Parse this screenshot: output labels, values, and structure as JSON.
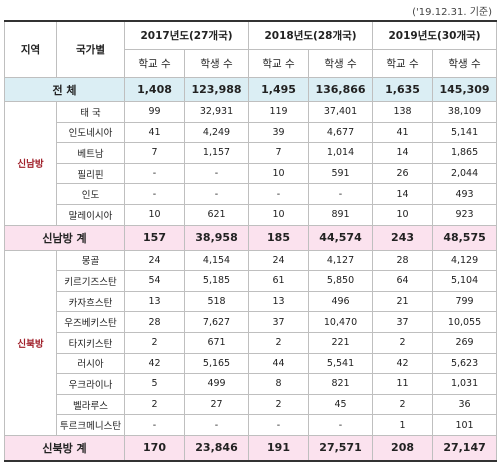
{
  "note": "('19.12.31. 기준)",
  "header": {
    "region": "지역",
    "country": "국가별",
    "years": [
      "2017년도(27개국)",
      "2018년도(28개국)",
      "2019년도(30개국)"
    ],
    "subheaders": [
      "학교 수",
      "학생 수",
      "학교 수",
      "학생 수",
      "학교 수",
      "학생 수"
    ]
  },
  "total": {
    "label": "전 체",
    "values": [
      "1,408",
      "123,988",
      "1,495",
      "136,866",
      "1,635",
      "145,309"
    ]
  },
  "groups": [
    {
      "region": "신남방",
      "rows": [
        {
          "country": "태 국",
          "values": [
            "99",
            "32,931",
            "119",
            "37,401",
            "138",
            "38,109"
          ]
        },
        {
          "country": "인도네시아",
          "values": [
            "41",
            "4,249",
            "39",
            "4,677",
            "41",
            "5,141"
          ]
        },
        {
          "country": "베트남",
          "values": [
            "7",
            "1,157",
            "7",
            "1,014",
            "14",
            "1,865"
          ]
        },
        {
          "country": "필리핀",
          "values": [
            "-",
            "-",
            "10",
            "591",
            "26",
            "2,044"
          ]
        },
        {
          "country": "인도",
          "values": [
            "-",
            "-",
            "-",
            "-",
            "14",
            "493"
          ]
        },
        {
          "country": "말레이시아",
          "values": [
            "10",
            "621",
            "10",
            "891",
            "10",
            "923"
          ]
        }
      ],
      "subtotal": {
        "label": "신남방 계",
        "values": [
          "157",
          "38,958",
          "185",
          "44,574",
          "243",
          "48,575"
        ]
      }
    },
    {
      "region": "신북방",
      "rows": [
        {
          "country": "몽골",
          "values": [
            "24",
            "4,154",
            "24",
            "4,127",
            "28",
            "4,129"
          ]
        },
        {
          "country": "키르기즈스탄",
          "values": [
            "54",
            "5,185",
            "61",
            "5,850",
            "64",
            "5,104"
          ]
        },
        {
          "country": "카자흐스탄",
          "values": [
            "13",
            "518",
            "13",
            "496",
            "21",
            "799"
          ]
        },
        {
          "country": "우즈베키스탄",
          "values": [
            "28",
            "7,627",
            "37",
            "10,470",
            "37",
            "10,055"
          ]
        },
        {
          "country": "타지키스탄",
          "values": [
            "2",
            "671",
            "2",
            "221",
            "2",
            "269"
          ]
        },
        {
          "country": "러시아",
          "values": [
            "42",
            "5,165",
            "44",
            "5,541",
            "42",
            "5,623"
          ]
        },
        {
          "country": "우크라이나",
          "values": [
            "5",
            "499",
            "8",
            "821",
            "11",
            "1,031"
          ]
        },
        {
          "country": "벨라루스",
          "values": [
            "2",
            "27",
            "2",
            "45",
            "2",
            "36"
          ]
        },
        {
          "country": "투르크메니스탄",
          "values": [
            "-",
            "-",
            "-",
            "-",
            "1",
            "101"
          ]
        }
      ],
      "subtotal": {
        "label": "신북방 계",
        "values": [
          "170",
          "23,846",
          "191",
          "27,571",
          "208",
          "27,147"
        ]
      }
    }
  ]
}
